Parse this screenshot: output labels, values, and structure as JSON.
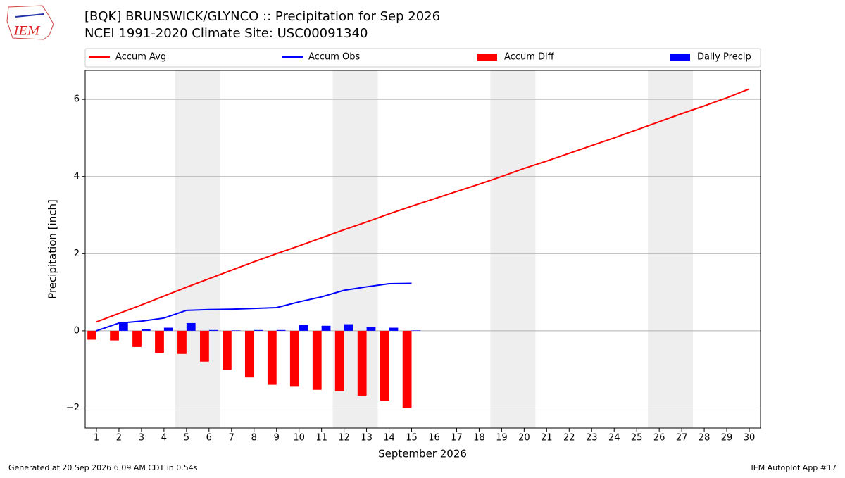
{
  "logo_text": "IEM",
  "footer_left": "Generated at 20 Sep 2026 6:09 AM CDT in 0.54s",
  "footer_right": "IEM Autoplot App #17",
  "chart_data": {
    "type": "combo",
    "title": "[BQK] BRUNSWICK/GLYNCO :: Precipitation for Sep 2026",
    "subtitle": "NCEI 1991-2020 Climate Site: USC00091340",
    "xlabel": "September 2026",
    "ylabel": "Precipitation [inch]",
    "x": [
      1,
      2,
      3,
      4,
      5,
      6,
      7,
      8,
      9,
      10,
      11,
      12,
      13,
      14,
      15,
      16,
      17,
      18,
      19,
      20,
      21,
      22,
      23,
      24,
      25,
      26,
      27,
      28,
      29,
      30
    ],
    "xlim": [
      0.5,
      30.5
    ],
    "xticks": [
      1,
      2,
      3,
      4,
      5,
      6,
      7,
      8,
      9,
      10,
      11,
      12,
      13,
      14,
      15,
      16,
      17,
      18,
      19,
      20,
      21,
      22,
      23,
      24,
      25,
      26,
      27,
      28,
      29,
      30
    ],
    "ylim": [
      -2.52,
      6.75
    ],
    "yticks": [
      {
        "value": -2,
        "label": "−2"
      },
      0,
      2,
      4,
      6
    ],
    "grid": true,
    "shaded_x_ranges": [
      [
        4.5,
        6.5
      ],
      [
        11.5,
        13.5
      ],
      [
        18.5,
        20.5
      ],
      [
        25.5,
        27.5
      ]
    ],
    "shade_color": "#eeeeee",
    "legend": "top",
    "series": [
      {
        "name": "Accum Avg",
        "kind": "line",
        "color": "#ff0000",
        "values": [
          0.23,
          0.45,
          0.67,
          0.9,
          1.13,
          1.35,
          1.57,
          1.79,
          2.0,
          2.2,
          2.41,
          2.62,
          2.82,
          3.03,
          3.23,
          3.42,
          3.61,
          3.8,
          4.0,
          4.21,
          4.4,
          4.6,
          4.8,
          5.0,
          5.21,
          5.42,
          5.63,
          5.83,
          6.04,
          6.27
        ]
      },
      {
        "name": "Accum Obs",
        "kind": "line",
        "color": "#0000ff",
        "values": [
          0,
          0.2,
          0.25,
          0.33,
          0.53,
          0.55,
          0.56,
          0.58,
          0.6,
          0.75,
          0.88,
          1.05,
          1.14,
          1.22,
          1.23,
          null,
          null,
          null,
          null,
          null,
          null,
          null,
          null,
          null,
          null,
          null,
          null,
          null,
          null,
          null
        ]
      },
      {
        "name": "Accum Diff",
        "kind": "bar",
        "side": "left",
        "color": "#ff0000",
        "values": [
          -0.23,
          -0.25,
          -0.42,
          -0.57,
          -0.6,
          -0.8,
          -1.01,
          -1.21,
          -1.4,
          -1.45,
          -1.53,
          -1.57,
          -1.68,
          -1.81,
          -2.0,
          null,
          null,
          null,
          null,
          null,
          null,
          null,
          null,
          null,
          null,
          null,
          null,
          null,
          null,
          null
        ]
      },
      {
        "name": "Daily Precip",
        "kind": "bar",
        "side": "right",
        "color": "#0000ff",
        "values": [
          0,
          0.2,
          0.05,
          0.08,
          0.2,
          0.02,
          0.01,
          0.02,
          0.02,
          0.15,
          0.13,
          0.17,
          0.09,
          0.08,
          0.01,
          null,
          null,
          null,
          null,
          null,
          null,
          null,
          null,
          null,
          null,
          null,
          null,
          null,
          null,
          null
        ]
      }
    ]
  }
}
